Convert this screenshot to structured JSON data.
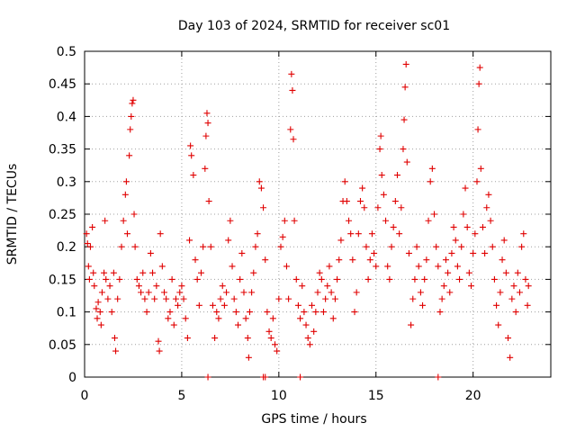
{
  "chart_data": {
    "type": "scatter",
    "title": "Day 103 of 2024, SRMTID for receiver sc01",
    "xlabel": "GPS time / hours",
    "ylabel": "SRMTID / TECUs",
    "xlim": [
      0,
      24
    ],
    "ylim": [
      0,
      0.5
    ],
    "x_ticks": [
      0,
      5,
      10,
      15,
      20
    ],
    "y_ticks": [
      0,
      0.05,
      0.1,
      0.15,
      0.2,
      0.25,
      0.3,
      0.35,
      0.4,
      0.45,
      0.5
    ],
    "x_tick_labels": [
      "0",
      "5",
      "10",
      "15",
      "20"
    ],
    "y_tick_labels": [
      "0",
      "0.05",
      "0.1",
      "0.15",
      "0.2",
      "0.25",
      "0.3",
      "0.35",
      "0.4",
      "0.45",
      "0.5"
    ],
    "grid": true,
    "marker": "+",
    "marker_color": "#e00000",
    "series": [
      {
        "name": "SRMTID",
        "points": [
          [
            0.1,
            0.22
          ],
          [
            0.15,
            0.205
          ],
          [
            0.2,
            0.17
          ],
          [
            0.25,
            0.15
          ],
          [
            0.3,
            0.2
          ],
          [
            0.4,
            0.23
          ],
          [
            0.45,
            0.16
          ],
          [
            0.5,
            0.14
          ],
          [
            0.6,
            0.105
          ],
          [
            0.65,
            0.09
          ],
          [
            0.7,
            0.115
          ],
          [
            0.8,
            0.1
          ],
          [
            0.85,
            0.08
          ],
          [
            0.9,
            0.13
          ],
          [
            1.0,
            0.16
          ],
          [
            1.05,
            0.24
          ],
          [
            1.1,
            0.15
          ],
          [
            1.2,
            0.12
          ],
          [
            1.3,
            0.14
          ],
          [
            1.4,
            0.1
          ],
          [
            1.5,
            0.16
          ],
          [
            1.55,
            0.06
          ],
          [
            1.6,
            0.04
          ],
          [
            1.7,
            0.12
          ],
          [
            1.8,
            0.15
          ],
          [
            1.9,
            0.2
          ],
          [
            2.0,
            0.24
          ],
          [
            2.1,
            0.28
          ],
          [
            2.15,
            0.3
          ],
          [
            2.2,
            0.22
          ],
          [
            2.3,
            0.34
          ],
          [
            2.35,
            0.38
          ],
          [
            2.4,
            0.4
          ],
          [
            2.45,
            0.42
          ],
          [
            2.5,
            0.425
          ],
          [
            2.55,
            0.25
          ],
          [
            2.6,
            0.2
          ],
          [
            2.7,
            0.15
          ],
          [
            2.8,
            0.14
          ],
          [
            2.9,
            0.13
          ],
          [
            3.0,
            0.16
          ],
          [
            3.1,
            0.12
          ],
          [
            3.2,
            0.1
          ],
          [
            3.3,
            0.13
          ],
          [
            3.4,
            0.19
          ],
          [
            3.5,
            0.16
          ],
          [
            3.6,
            0.12
          ],
          [
            3.7,
            0.14
          ],
          [
            3.8,
            0.055
          ],
          [
            3.85,
            0.04
          ],
          [
            3.9,
            0.22
          ],
          [
            4.0,
            0.17
          ],
          [
            4.1,
            0.13
          ],
          [
            4.2,
            0.12
          ],
          [
            4.3,
            0.09
          ],
          [
            4.4,
            0.1
          ],
          [
            4.5,
            0.15
          ],
          [
            4.6,
            0.08
          ],
          [
            4.7,
            0.12
          ],
          [
            4.8,
            0.11
          ],
          [
            4.9,
            0.13
          ],
          [
            5.0,
            0.14
          ],
          [
            5.1,
            0.12
          ],
          [
            5.2,
            0.09
          ],
          [
            5.3,
            0.06
          ],
          [
            5.4,
            0.21
          ],
          [
            5.45,
            0.355
          ],
          [
            5.5,
            0.34
          ],
          [
            5.6,
            0.31
          ],
          [
            5.7,
            0.18
          ],
          [
            5.8,
            0.15
          ],
          [
            5.9,
            0.11
          ],
          [
            6.0,
            0.16
          ],
          [
            6.1,
            0.2
          ],
          [
            6.2,
            0.32
          ],
          [
            6.25,
            0.37
          ],
          [
            6.3,
            0.405
          ],
          [
            6.35,
            0.39
          ],
          [
            6.4,
            0.27
          ],
          [
            6.5,
            0.2
          ],
          [
            6.6,
            0.11
          ],
          [
            6.7,
            0.06
          ],
          [
            6.8,
            0.1
          ],
          [
            6.9,
            0.09
          ],
          [
            7.0,
            0.12
          ],
          [
            7.1,
            0.14
          ],
          [
            7.2,
            0.11
          ],
          [
            7.3,
            0.13
          ],
          [
            7.4,
            0.21
          ],
          [
            7.5,
            0.24
          ],
          [
            7.6,
            0.17
          ],
          [
            7.7,
            0.12
          ],
          [
            7.8,
            0.1
          ],
          [
            7.9,
            0.08
          ],
          [
            8.0,
            0.15
          ],
          [
            8.1,
            0.19
          ],
          [
            8.2,
            0.13
          ],
          [
            8.3,
            0.09
          ],
          [
            8.4,
            0.06
          ],
          [
            8.45,
            0.03
          ],
          [
            8.5,
            0.1
          ],
          [
            8.6,
            0.13
          ],
          [
            8.7,
            0.16
          ],
          [
            8.8,
            0.2
          ],
          [
            8.9,
            0.22
          ],
          [
            9.0,
            0.3
          ],
          [
            9.1,
            0.29
          ],
          [
            9.2,
            0.26
          ],
          [
            9.3,
            0.18
          ],
          [
            9.4,
            0.1
          ],
          [
            9.5,
            0.07
          ],
          [
            9.6,
            0.06
          ],
          [
            9.7,
            0.09
          ],
          [
            9.8,
            0.05
          ],
          [
            9.9,
            0.04
          ],
          [
            10.0,
            0.12
          ],
          [
            10.1,
            0.2
          ],
          [
            10.2,
            0.215
          ],
          [
            10.3,
            0.24
          ],
          [
            10.4,
            0.17
          ],
          [
            10.5,
            0.12
          ],
          [
            10.6,
            0.38
          ],
          [
            10.65,
            0.465
          ],
          [
            10.7,
            0.44
          ],
          [
            10.75,
            0.365
          ],
          [
            10.8,
            0.24
          ],
          [
            10.9,
            0.15
          ],
          [
            11.0,
            0.11
          ],
          [
            11.1,
            0.09
          ],
          [
            11.2,
            0.14
          ],
          [
            11.3,
            0.1
          ],
          [
            11.4,
            0.08
          ],
          [
            11.5,
            0.06
          ],
          [
            11.6,
            0.05
          ],
          [
            11.7,
            0.11
          ],
          [
            11.8,
            0.07
          ],
          [
            11.9,
            0.1
          ],
          [
            12.0,
            0.13
          ],
          [
            12.1,
            0.16
          ],
          [
            12.2,
            0.15
          ],
          [
            12.3,
            0.1
          ],
          [
            12.4,
            0.12
          ],
          [
            12.5,
            0.14
          ],
          [
            12.6,
            0.17
          ],
          [
            12.7,
            0.13
          ],
          [
            12.8,
            0.09
          ],
          [
            12.9,
            0.12
          ],
          [
            13.0,
            0.15
          ],
          [
            13.1,
            0.18
          ],
          [
            13.2,
            0.21
          ],
          [
            13.3,
            0.27
          ],
          [
            13.4,
            0.3
          ],
          [
            13.5,
            0.27
          ],
          [
            13.6,
            0.24
          ],
          [
            13.7,
            0.22
          ],
          [
            13.8,
            0.18
          ],
          [
            13.9,
            0.1
          ],
          [
            14.0,
            0.13
          ],
          [
            14.1,
            0.22
          ],
          [
            14.2,
            0.27
          ],
          [
            14.3,
            0.29
          ],
          [
            14.4,
            0.26
          ],
          [
            14.5,
            0.2
          ],
          [
            14.6,
            0.15
          ],
          [
            14.7,
            0.18
          ],
          [
            14.8,
            0.22
          ],
          [
            14.9,
            0.19
          ],
          [
            15.0,
            0.17
          ],
          [
            15.1,
            0.26
          ],
          [
            15.2,
            0.35
          ],
          [
            15.25,
            0.37
          ],
          [
            15.3,
            0.31
          ],
          [
            15.4,
            0.28
          ],
          [
            15.5,
            0.24
          ],
          [
            15.6,
            0.17
          ],
          [
            15.7,
            0.15
          ],
          [
            15.8,
            0.2
          ],
          [
            15.9,
            0.23
          ],
          [
            16.0,
            0.27
          ],
          [
            16.1,
            0.31
          ],
          [
            16.2,
            0.22
          ],
          [
            16.3,
            0.26
          ],
          [
            16.4,
            0.35
          ],
          [
            16.45,
            0.395
          ],
          [
            16.5,
            0.445
          ],
          [
            16.55,
            0.48
          ],
          [
            16.6,
            0.33
          ],
          [
            16.7,
            0.19
          ],
          [
            16.8,
            0.08
          ],
          [
            16.9,
            0.12
          ],
          [
            17.0,
            0.15
          ],
          [
            17.1,
            0.2
          ],
          [
            17.2,
            0.17
          ],
          [
            17.3,
            0.13
          ],
          [
            17.4,
            0.11
          ],
          [
            17.5,
            0.15
          ],
          [
            17.6,
            0.18
          ],
          [
            17.7,
            0.24
          ],
          [
            17.8,
            0.3
          ],
          [
            17.9,
            0.32
          ],
          [
            18.0,
            0.25
          ],
          [
            18.1,
            0.2
          ],
          [
            18.2,
            0.17
          ],
          [
            18.3,
            0.1
          ],
          [
            18.4,
            0.12
          ],
          [
            18.5,
            0.14
          ],
          [
            18.6,
            0.18
          ],
          [
            18.7,
            0.16
          ],
          [
            18.8,
            0.13
          ],
          [
            18.9,
            0.19
          ],
          [
            19.0,
            0.23
          ],
          [
            19.1,
            0.21
          ],
          [
            19.2,
            0.17
          ],
          [
            19.3,
            0.15
          ],
          [
            19.4,
            0.2
          ],
          [
            19.5,
            0.25
          ],
          [
            19.6,
            0.29
          ],
          [
            19.7,
            0.23
          ],
          [
            19.8,
            0.16
          ],
          [
            19.9,
            0.14
          ],
          [
            20.0,
            0.19
          ],
          [
            20.1,
            0.22
          ],
          [
            20.2,
            0.3
          ],
          [
            20.25,
            0.38
          ],
          [
            20.3,
            0.45
          ],
          [
            20.35,
            0.475
          ],
          [
            20.4,
            0.32
          ],
          [
            20.5,
            0.23
          ],
          [
            20.6,
            0.19
          ],
          [
            20.7,
            0.26
          ],
          [
            20.8,
            0.28
          ],
          [
            20.9,
            0.24
          ],
          [
            21.0,
            0.2
          ],
          [
            21.1,
            0.15
          ],
          [
            21.2,
            0.11
          ],
          [
            21.3,
            0.08
          ],
          [
            21.4,
            0.13
          ],
          [
            21.5,
            0.18
          ],
          [
            21.6,
            0.21
          ],
          [
            21.7,
            0.16
          ],
          [
            21.8,
            0.06
          ],
          [
            21.9,
            0.03
          ],
          [
            22.0,
            0.12
          ],
          [
            22.1,
            0.14
          ],
          [
            22.2,
            0.1
          ],
          [
            22.3,
            0.16
          ],
          [
            22.4,
            0.13
          ],
          [
            22.5,
            0.2
          ],
          [
            22.6,
            0.22
          ],
          [
            22.7,
            0.15
          ],
          [
            22.8,
            0.11
          ],
          [
            22.85,
            0.14
          ],
          [
            6.35,
            0.0
          ],
          [
            9.2,
            0.0
          ],
          [
            9.3,
            0.0
          ],
          [
            11.1,
            0.0
          ],
          [
            18.2,
            0.0
          ]
        ]
      }
    ]
  }
}
